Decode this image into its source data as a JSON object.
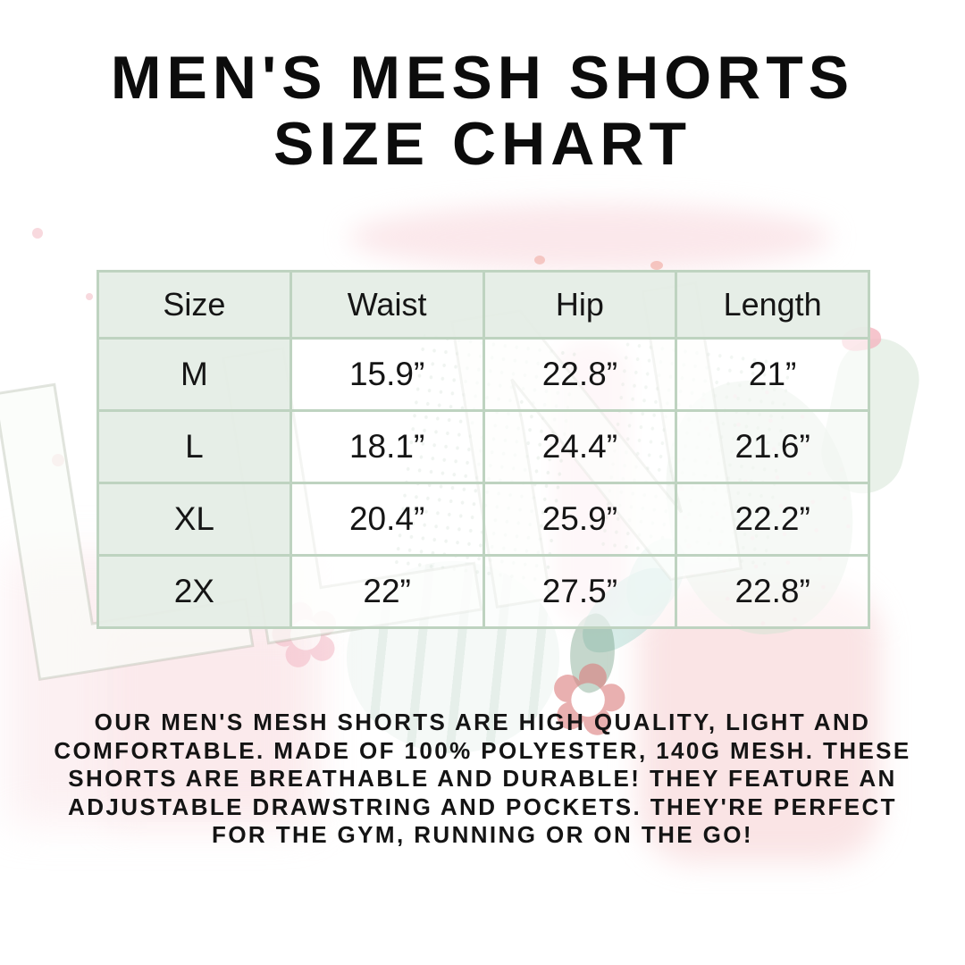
{
  "page": {
    "title": "MEN'S MESH SHORTS\nSIZE CHART",
    "description": "OUR MEN'S MESH SHORTS ARE HIGH QUALITY, LIGHT AND\nCOMFORTABLE. MADE OF 100% POLYESTER, 140G MESH. THESE\nSHORTS ARE BREATHABLE AND DURABLE! THEY FEATURE AN\nADJUSTABLE DRAWSTRING AND POCKETS. THEY'RE PERFECT\nFOR THE GYM, RUNNING OR ON THE GO!"
  },
  "size_table": {
    "columns": [
      "Size",
      "Waist",
      "Hip",
      "Length"
    ],
    "rows": [
      [
        "M",
        "15.9”",
        "22.8”",
        "21”"
      ],
      [
        "L",
        "18.1”",
        "24.4”",
        "21.6”"
      ],
      [
        "XL",
        "20.4”",
        "25.9”",
        "22.2”"
      ],
      [
        "2X",
        "22”",
        "27.5”",
        "22.8”"
      ]
    ]
  },
  "watermark": {
    "letters": "LLN",
    "flower_glyph": "✿"
  },
  "colors": {
    "table_border": "#bed3c0",
    "cell_mint": "#e5eee6",
    "text": "#0c0c0c",
    "watermark_pink": "#f8d6da",
    "watermark_green": "#d6e5d6"
  },
  "chart_data": {
    "type": "table",
    "title": "MEN'S MESH SHORTS SIZE CHART",
    "columns": [
      "Size",
      "Waist",
      "Hip",
      "Length"
    ],
    "units": "inches",
    "rows": [
      {
        "size": "M",
        "waist_in": 15.9,
        "hip_in": 22.8,
        "length_in": 21
      },
      {
        "size": "L",
        "waist_in": 18.1,
        "hip_in": 24.4,
        "length_in": 21.6
      },
      {
        "size": "XL",
        "waist_in": 20.4,
        "hip_in": 25.9,
        "length_in": 22.2
      },
      {
        "size": "2X",
        "waist_in": 22,
        "hip_in": 27.5,
        "length_in": 22.8
      }
    ]
  }
}
